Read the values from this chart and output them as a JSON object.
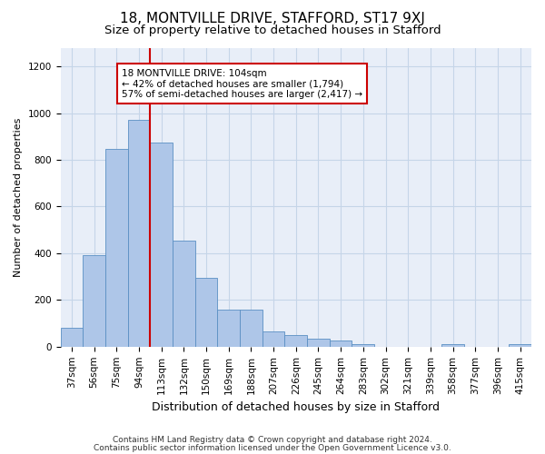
{
  "title1": "18, MONTVILLE DRIVE, STAFFORD, ST17 9XJ",
  "title2": "Size of property relative to detached houses in Stafford",
  "xlabel": "Distribution of detached houses by size in Stafford",
  "ylabel": "Number of detached properties",
  "categories": [
    "37sqm",
    "56sqm",
    "75sqm",
    "94sqm",
    "113sqm",
    "132sqm",
    "150sqm",
    "169sqm",
    "188sqm",
    "207sqm",
    "226sqm",
    "245sqm",
    "264sqm",
    "283sqm",
    "302sqm",
    "321sqm",
    "339sqm",
    "358sqm",
    "377sqm",
    "396sqm",
    "415sqm"
  ],
  "values": [
    80,
    390,
    845,
    970,
    875,
    455,
    295,
    160,
    160,
    65,
    50,
    35,
    25,
    10,
    0,
    0,
    0,
    10,
    0,
    0,
    10
  ],
  "bar_color": "#aec6e8",
  "bar_edge_color": "#5a8fc3",
  "vline_x_index": 3.5,
  "annotation_line1": "18 MONTVILLE DRIVE: 104sqm",
  "annotation_line2": "← 42% of detached houses are smaller (1,794)",
  "annotation_line3": "57% of semi-detached houses are larger (2,417) →",
  "annotation_box_color": "#ffffff",
  "annotation_box_edge": "#cc0000",
  "vline_color": "#cc0000",
  "ylim": [
    0,
    1280
  ],
  "yticks": [
    0,
    200,
    400,
    600,
    800,
    1000,
    1200
  ],
  "grid_color": "#c5d5e8",
  "bg_color": "#e8eef8",
  "footer1": "Contains HM Land Registry data © Crown copyright and database right 2024.",
  "footer2": "Contains public sector information licensed under the Open Government Licence v3.0.",
  "title1_fontsize": 11,
  "title2_fontsize": 9.5,
  "xlabel_fontsize": 9,
  "ylabel_fontsize": 8,
  "tick_fontsize": 7.5,
  "annotation_fontsize": 7.5,
  "footer_fontsize": 6.5
}
